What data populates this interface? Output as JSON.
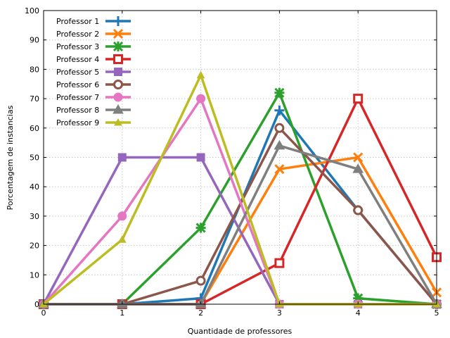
{
  "chart_data": {
    "type": "line",
    "xlabel": "Quantidade de professores",
    "ylabel": "Porcentagem de instancias",
    "xlim": [
      0,
      5
    ],
    "ylim": [
      0,
      100
    ],
    "x": [
      0,
      1,
      2,
      3,
      4,
      5
    ],
    "xticks": [
      "0",
      "1",
      "2",
      "3",
      "4",
      "5"
    ],
    "yticks": [
      "0",
      "10",
      "20",
      "30",
      "40",
      "50",
      "60",
      "70",
      "80",
      "90",
      "100"
    ],
    "grid": true,
    "legend_position": "top-left",
    "series": [
      {
        "name": "Professor 1",
        "color": "#1f77b4",
        "marker": "plus",
        "values": [
          0,
          0,
          2,
          66,
          32,
          0
        ]
      },
      {
        "name": "Professor 2",
        "color": "#ff7f0e",
        "marker": "x",
        "values": [
          0,
          0,
          0,
          46,
          50,
          4
        ]
      },
      {
        "name": "Professor 3",
        "color": "#2ca02c",
        "marker": "star",
        "values": [
          0,
          0,
          26,
          72,
          2,
          0
        ]
      },
      {
        "name": "Professor 4",
        "color": "#d62728",
        "marker": "square-open",
        "values": [
          0,
          0,
          0,
          14,
          70,
          16
        ]
      },
      {
        "name": "Professor 5",
        "color": "#9467bd",
        "marker": "square",
        "values": [
          0,
          50,
          50,
          0,
          0,
          0
        ]
      },
      {
        "name": "Professor 6",
        "color": "#8c564b",
        "marker": "circle-open",
        "values": [
          0,
          0,
          8,
          60,
          32,
          0
        ]
      },
      {
        "name": "Professor 7",
        "color": "#e377c2",
        "marker": "circle",
        "values": [
          0,
          30,
          70,
          0,
          0,
          0
        ]
      },
      {
        "name": "Professor 8",
        "color": "#7f7f7f",
        "marker": "triangle",
        "values": [
          0,
          0,
          0,
          54,
          46,
          0
        ]
      },
      {
        "name": "Professor 9",
        "color": "#bcbd22",
        "marker": "triangle-small",
        "values": [
          0,
          22,
          78,
          0,
          0,
          0
        ]
      }
    ]
  }
}
